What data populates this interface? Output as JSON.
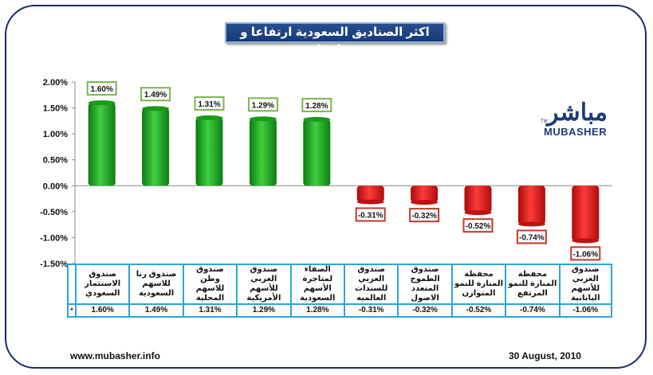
{
  "title": "اكثر الصناديق السعودية ارتفاعا و تراجعا",
  "brand": {
    "arabic": "مباشر",
    "english": "MUBASHER",
    "tm": "TM"
  },
  "footer": {
    "website": "www.mubasher.info",
    "date": "30 August, 2010"
  },
  "colors": {
    "positive": "#1aa31a",
    "negative": "#e01010",
    "grid_border": "#2aa7d8",
    "title_bg": "#1f4585"
  },
  "chart_data": {
    "type": "bar",
    "title": "اكثر الصناديق السعودية ارتفاعا و تراجعا",
    "ylim": [
      -1.5,
      2.0
    ],
    "yticks": [
      2.0,
      1.5,
      1.0,
      0.5,
      0.0,
      -0.5,
      -1.0,
      -1.5
    ],
    "ytick_labels": [
      "2.00%",
      "1.50%",
      "1.00%",
      "0.50%",
      "0.00%",
      "-0.50%",
      "-1.00%",
      "-1.50%"
    ],
    "legend_marker": "*",
    "categories": [
      "صندوق الاستثمار السعودي",
      "صندوق رنا للاسهم السعودية",
      "صندوق وطن للاسهم المحلية",
      "صندوق العربي للأسهم الأمريكية",
      "الصفاء لمتاجرة الأسهم السعودية",
      "صندوق العربي للسندات العالميه",
      "صندوق الطموح المتعدد الاصول",
      "محفظة المنارة للنمو المتوازن",
      "محفظة المنارة للنمو المرتفع",
      "صندوق العربي للأسهم اليابانية"
    ],
    "values": [
      1.6,
      1.49,
      1.31,
      1.29,
      1.28,
      -0.31,
      -0.32,
      -0.52,
      -0.74,
      -1.06
    ],
    "labels": [
      "1.60%",
      "1.49%",
      "1.31%",
      "1.29%",
      "1.28%",
      "-0.31%",
      "-0.32%",
      "-0.52%",
      "-0.74%",
      "-1.06%"
    ]
  }
}
